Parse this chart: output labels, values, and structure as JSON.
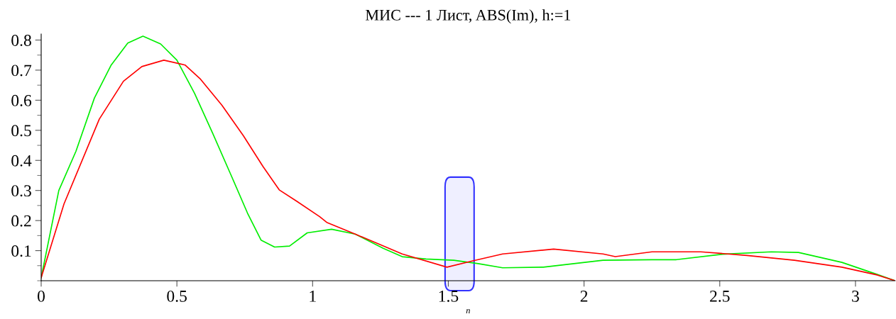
{
  "chart_data": {
    "type": "line",
    "title": "МИС --- 1 Лист, ABS(Im), h:=1",
    "xlabel": "n",
    "xlim": [
      0,
      3.146
    ],
    "ylim": [
      0,
      0.82
    ],
    "xticks": [
      0,
      0.5,
      1,
      1.5,
      2,
      2.5,
      3
    ],
    "yticks": [
      0.1,
      0.2,
      0.3,
      0.4,
      0.5,
      0.6,
      0.7,
      0.8
    ],
    "bands": [
      {
        "axis": "x",
        "from": 1.488,
        "to": 1.595,
        "color": "#3333ff"
      }
    ],
    "grid": false,
    "legend": false,
    "marker": "none",
    "line_style": "solid",
    "series": [
      {
        "color": "#00ee00",
        "x": [
          0,
          0.065,
          0.128,
          0.196,
          0.258,
          0.319,
          0.375,
          0.44,
          0.5,
          0.565,
          0.632,
          0.7,
          0.76,
          0.81,
          0.86,
          0.915,
          0.98,
          1.07,
          1.157,
          1.26,
          1.33,
          1.418,
          1.52,
          1.61,
          1.7,
          1.85,
          2.07,
          2.25,
          2.34,
          2.51,
          2.69,
          2.79,
          2.95,
          3.08,
          3.146
        ],
        "values": [
          0.01,
          0.3,
          0.43,
          0.607,
          0.717,
          0.79,
          0.813,
          0.787,
          0.733,
          0.623,
          0.49,
          0.35,
          0.225,
          0.135,
          0.112,
          0.115,
          0.159,
          0.171,
          0.155,
          0.108,
          0.08,
          0.072,
          0.068,
          0.057,
          0.043,
          0.045,
          0.068,
          0.07,
          0.07,
          0.088,
          0.096,
          0.094,
          0.061,
          0.021,
          0.0
        ]
      },
      {
        "color": "#ff0000",
        "x": [
          0,
          0.084,
          0.214,
          0.303,
          0.371,
          0.452,
          0.53,
          0.587,
          0.666,
          0.745,
          0.817,
          0.877,
          0.94,
          1.026,
          1.052,
          1.157,
          1.33,
          1.495,
          1.59,
          1.7,
          1.888,
          2.07,
          2.115,
          2.25,
          2.43,
          2.6,
          2.775,
          2.95,
          3.08,
          3.146
        ],
        "values": [
          0.01,
          0.255,
          0.537,
          0.663,
          0.712,
          0.733,
          0.717,
          0.67,
          0.583,
          0.482,
          0.38,
          0.302,
          0.265,
          0.213,
          0.194,
          0.155,
          0.089,
          0.045,
          0.066,
          0.089,
          0.105,
          0.089,
          0.08,
          0.096,
          0.096,
          0.084,
          0.068,
          0.045,
          0.019,
          0.0
        ]
      }
    ]
  }
}
